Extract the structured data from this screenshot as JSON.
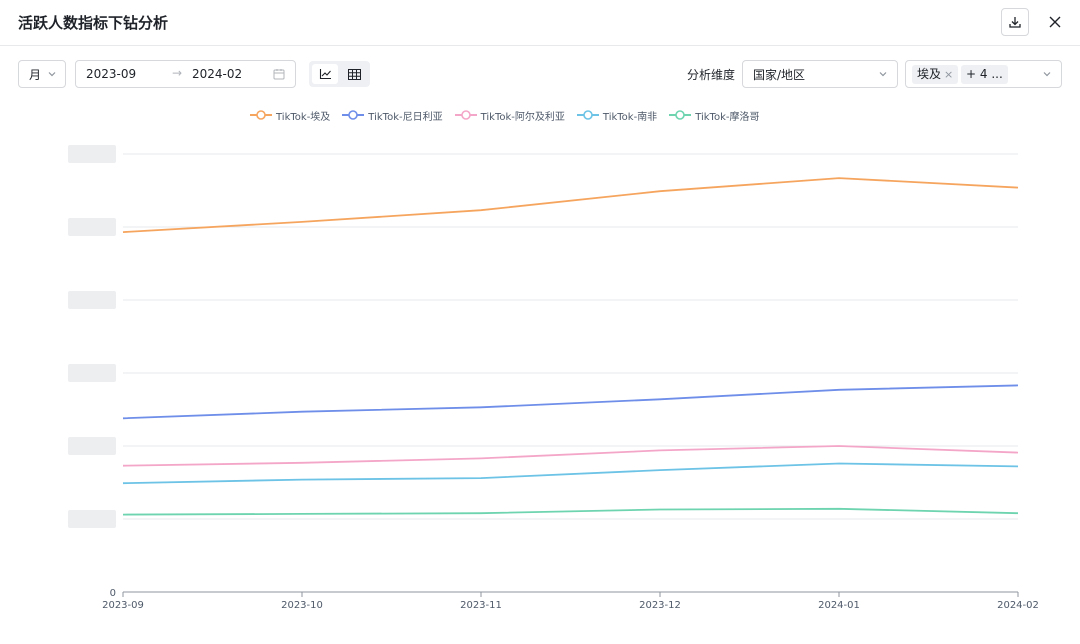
{
  "header": {
    "title": "活跃人数指标下钻分析"
  },
  "toolbar": {
    "period": "月",
    "date_start": "2023-09",
    "date_sep": "→",
    "date_end": "2024-02",
    "dimension_label": "分析维度",
    "dimension_value": "国家/地区",
    "selected_tag": "埃及",
    "tag_remove": "×",
    "more_tag": "+ 4 ..."
  },
  "colors": {
    "accent": "#4e6ef2",
    "egypt": "#f6a55f",
    "nigeria": "#6e8ee9",
    "algeria": "#f4a6c8",
    "south_africa": "#6cc3e6",
    "morocco": "#6ed4b0"
  },
  "chart_data": {
    "type": "line",
    "x": [
      "2023-09",
      "2023-10",
      "2023-11",
      "2023-12",
      "2024-01",
      "2024-02"
    ],
    "ytick_zero": "0",
    "y_other_ticks_obscured": true,
    "ylim": [
      0,
      6
    ],
    "series": [
      {
        "name": "TikTok-埃及",
        "color": "#f6a55f",
        "values": [
          4.93,
          5.07,
          5.23,
          5.49,
          5.67,
          5.54
        ]
      },
      {
        "name": "TikTok-尼日利亚",
        "color": "#6e8ee9",
        "values": [
          2.38,
          2.47,
          2.53,
          2.64,
          2.77,
          2.83
        ]
      },
      {
        "name": "TikTok-阿尔及利亚",
        "color": "#f4a6c8",
        "values": [
          1.73,
          1.77,
          1.83,
          1.94,
          2.0,
          1.91
        ]
      },
      {
        "name": "TikTok-南非",
        "color": "#6cc3e6",
        "values": [
          1.49,
          1.54,
          1.56,
          1.67,
          1.76,
          1.72
        ]
      },
      {
        "name": "TikTok-摩洛哥",
        "color": "#6ed4b0",
        "values": [
          1.06,
          1.07,
          1.08,
          1.13,
          1.14,
          1.08
        ]
      }
    ],
    "grid": true,
    "legend": "top-center"
  }
}
